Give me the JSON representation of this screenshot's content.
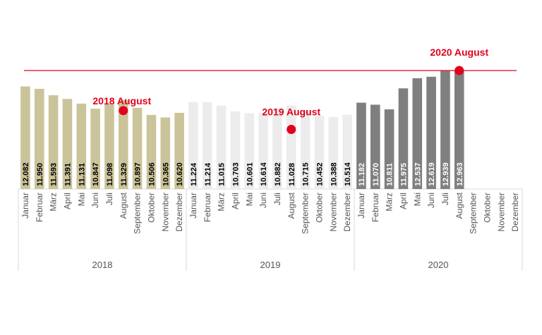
{
  "chart_data": {
    "type": "bar",
    "title": "",
    "xlabel": "",
    "ylabel": "",
    "ylim": [
      0,
      13200
    ],
    "months": [
      "Januar",
      "Februar",
      "März",
      "April",
      "Mai",
      "Juni",
      "Juli",
      "August",
      "September",
      "Oktober",
      "November",
      "Dezember"
    ],
    "series": [
      {
        "name": "2018",
        "color": "#cbc49a",
        "label_color": "#000000",
        "values": [
          12082,
          11950,
          11593,
          11391,
          11131,
          10847,
          11098,
          11329,
          10897,
          10506,
          10365,
          10620
        ],
        "labels": [
          "12.082",
          "11.950",
          "11.593",
          "11.391",
          "11.131",
          "10.847",
          "11.098",
          "11.329",
          "10.897",
          "10.506",
          "10.365",
          "10.620"
        ]
      },
      {
        "name": "2019",
        "color": "#ececec",
        "label_color": "#000000",
        "values": [
          11224,
          11214,
          11015,
          10703,
          10601,
          10614,
          10882,
          11028,
          10715,
          10452,
          10388,
          10514
        ],
        "labels": [
          "11.224",
          "11.214",
          "11.015",
          "10.703",
          "10.601",
          "10.614",
          "10.882",
          "11.028",
          "10.715",
          "10.452",
          "10.388",
          "10.514"
        ]
      },
      {
        "name": "2020",
        "color": "#7f7f7f",
        "label_color": "#ffffff",
        "values": [
          11182,
          11070,
          10811,
          11975,
          12537,
          12619,
          12939,
          12963
        ],
        "labels": [
          "11.182",
          "11.070",
          "10.811",
          "11.975",
          "12.537",
          "12.619",
          "12.939",
          "12.963"
        ]
      }
    ],
    "annotations": [
      {
        "label": "2018 August",
        "year_index": 0,
        "month_index": 7
      },
      {
        "label": "2019 August",
        "year_index": 1,
        "month_index": 7
      },
      {
        "label": "2020 August",
        "year_index": 2,
        "month_index": 7
      }
    ],
    "reference_line_value": 12963,
    "accent_color": "#e3001b"
  }
}
